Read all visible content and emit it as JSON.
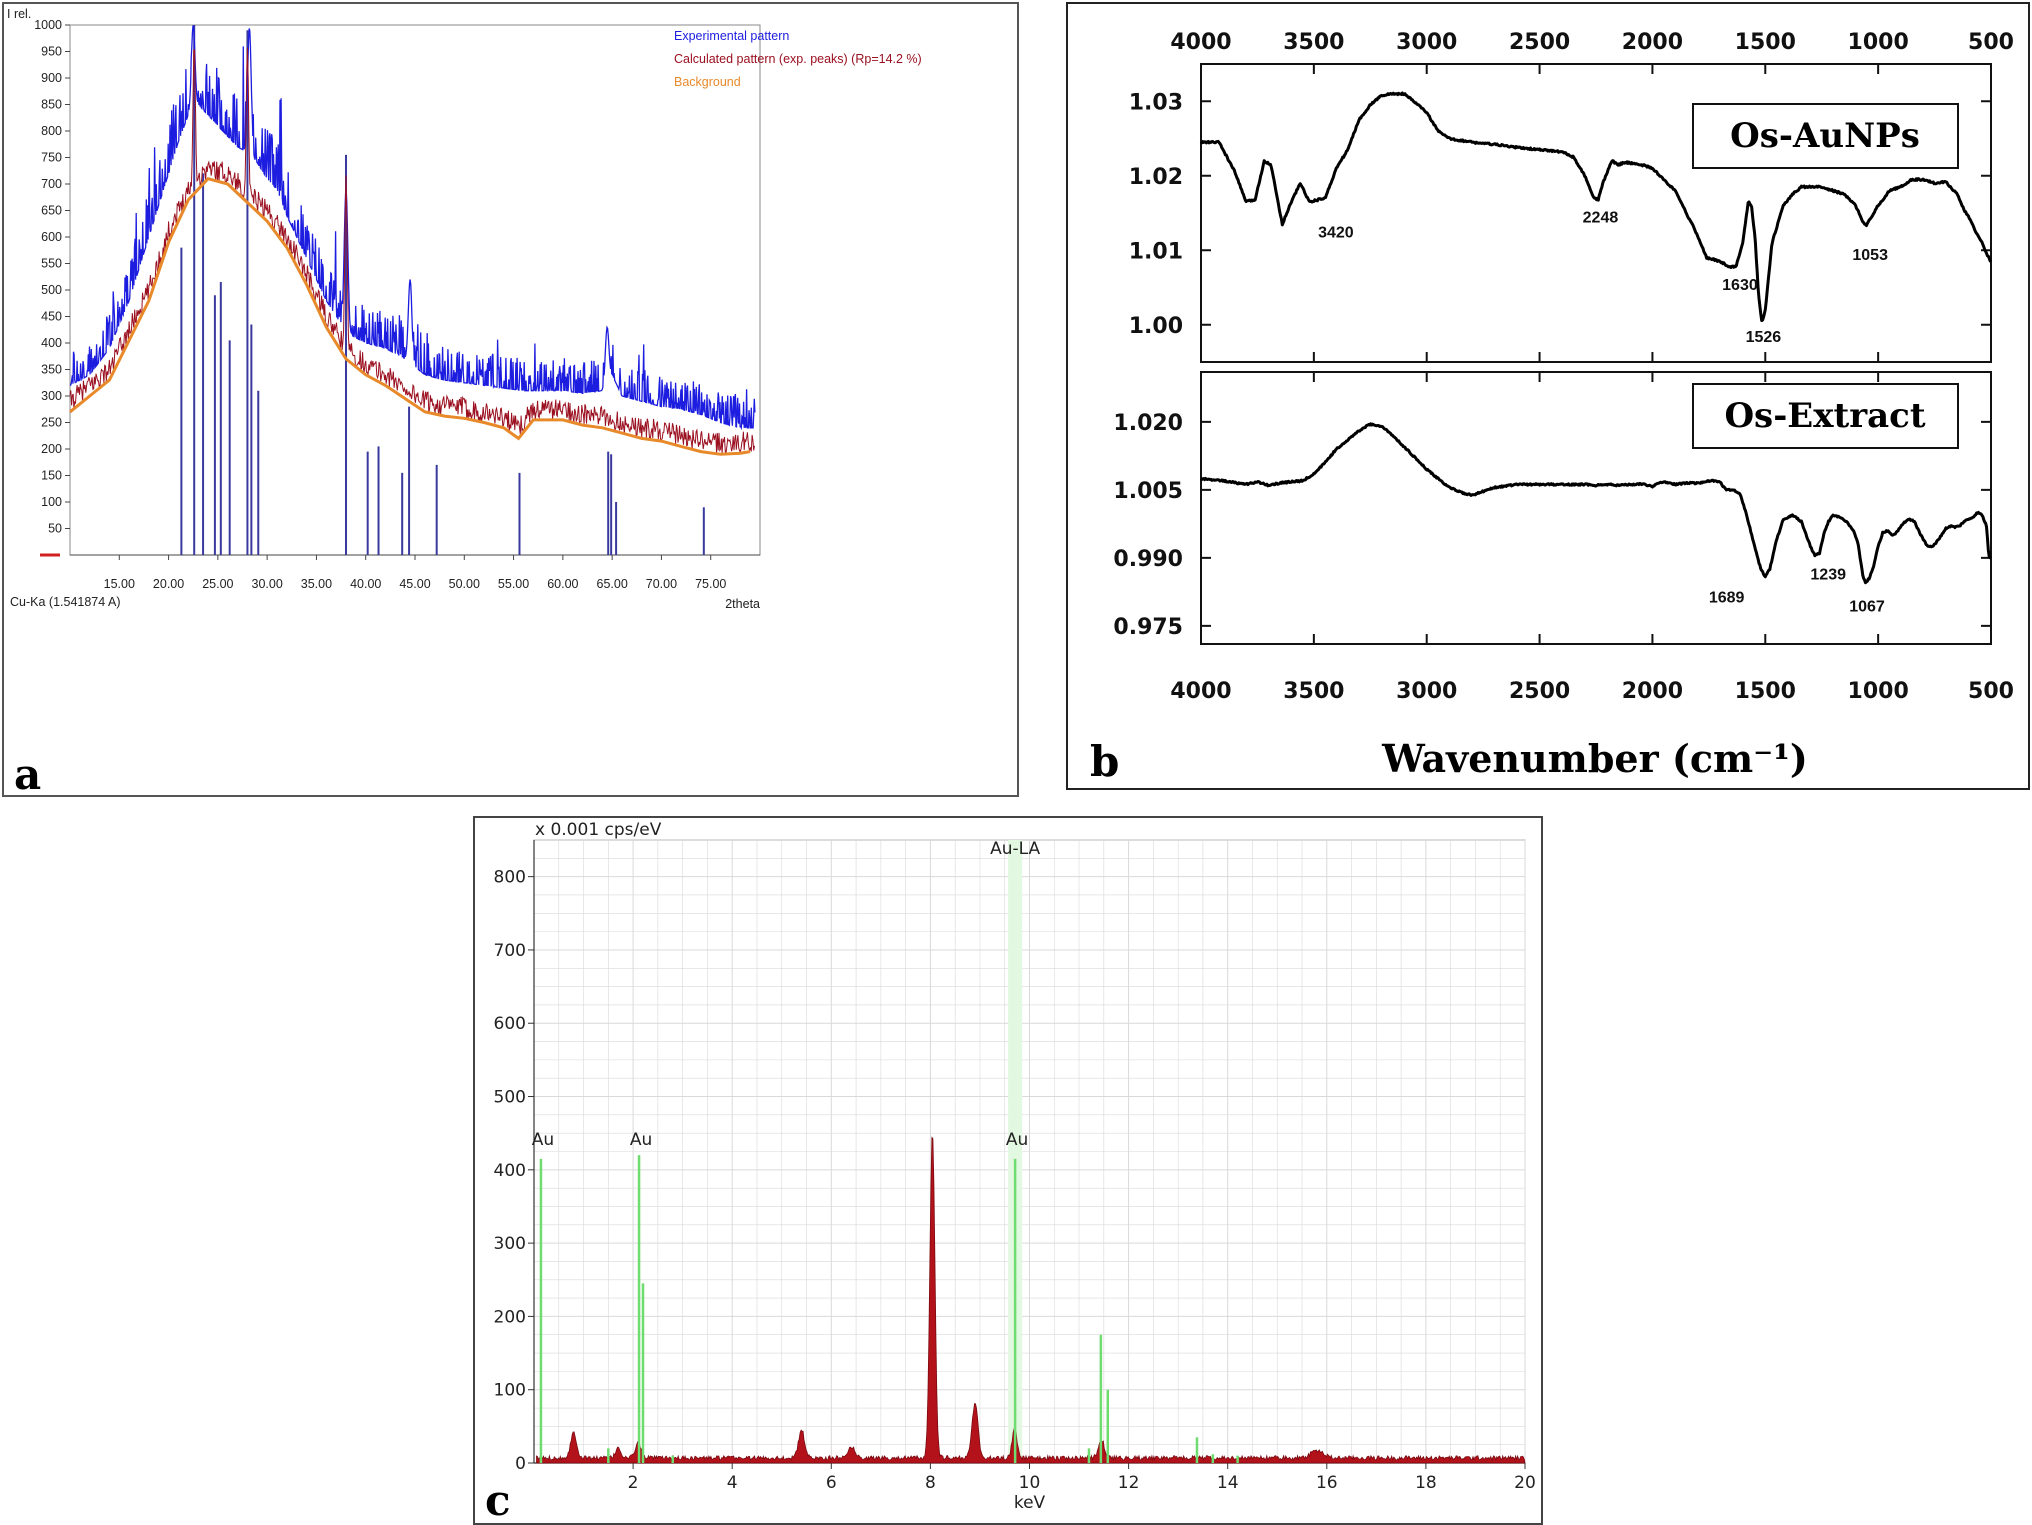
{
  "chart_data": [
    {
      "panel": "a",
      "type": "line",
      "ylabel": "I rel.",
      "xlabel": "2theta",
      "radiation": "Cu-Ka (1.541874 A)",
      "xlim": [
        10,
        80
      ],
      "ylim": [
        0,
        1000
      ],
      "x_ticks": [
        "15.00",
        "20.00",
        "25.00",
        "30.00",
        "35.00",
        "40.00",
        "45.00",
        "50.00",
        "55.00",
        "60.00",
        "65.00",
        "70.00",
        "75.00"
      ],
      "y_ticks": [
        "50",
        "100",
        "150",
        "200",
        "250",
        "300",
        "350",
        "400",
        "450",
        "500",
        "550",
        "600",
        "650",
        "700",
        "750",
        "800",
        "850",
        "900",
        "950",
        "1000"
      ],
      "legend": [
        "Experimental pattern",
        "Calculated pattern (exp. peaks) (Rp=14.2 %)",
        "Background"
      ],
      "colors": {
        "experimental": "#1d1de0",
        "calculated": "#9b1020",
        "background": "#e8892a",
        "sticks": "#3a3a9e"
      },
      "background_curve": {
        "x": [
          10,
          14,
          18,
          20,
          22,
          24,
          26,
          28,
          30,
          32,
          34,
          36,
          38,
          40,
          42,
          44,
          46,
          48,
          50,
          52,
          54,
          55.5,
          57,
          60,
          62,
          64,
          66,
          68,
          70,
          72,
          74,
          76,
          78,
          79
        ],
        "y": [
          270,
          330,
          480,
          590,
          670,
          710,
          700,
          665,
          630,
          580,
          510,
          430,
          370,
          340,
          320,
          295,
          270,
          262,
          258,
          250,
          240,
          220,
          255,
          255,
          245,
          240,
          230,
          220,
          215,
          205,
          195,
          190,
          192,
          195
        ]
      },
      "experimental_envelope": {
        "x": [
          10,
          12,
          14,
          16,
          18,
          20,
          21,
          22,
          23,
          24,
          25,
          26,
          27,
          28,
          29,
          30,
          31,
          32,
          34,
          36,
          38,
          40,
          42,
          44,
          46,
          48,
          50,
          52,
          54,
          56,
          58,
          60,
          62,
          64,
          65,
          66,
          68,
          70,
          72,
          74,
          76,
          78,
          79
        ],
        "y": [
          320,
          340,
          390,
          480,
          600,
          720,
          780,
          830,
          850,
          830,
          810,
          790,
          770,
          760,
          740,
          710,
          690,
          640,
          560,
          480,
          420,
          400,
          390,
          370,
          340,
          330,
          325,
          320,
          315,
          310,
          310,
          310,
          305,
          310,
          340,
          300,
          290,
          280,
          275,
          265,
          250,
          240,
          240
        ]
      },
      "sharp_peaks": {
        "x": [
          22.5,
          28.2,
          38.0,
          44.5,
          64.5
        ],
        "y": [
          1000,
          995,
          690,
          520,
          430
        ]
      },
      "reference_sticks": {
        "x": [
          21.3,
          22.6,
          23.5,
          24.7,
          25.3,
          26.2,
          28.0,
          28.4,
          29.1,
          38.0,
          40.2,
          41.3,
          43.7,
          44.4,
          47.2,
          55.6,
          64.6,
          64.9,
          65.4,
          74.3
        ],
        "y": [
          580,
          1000,
          720,
          490,
          515,
          405,
          990,
          435,
          310,
          755,
          195,
          205,
          155,
          280,
          170,
          155,
          195,
          190,
          100,
          90
        ]
      }
    },
    {
      "panel": "b",
      "type": "line",
      "xlabel": "Wavenumber (cm⁻¹)",
      "x_ticks": [
        "4000",
        "3500",
        "3000",
        "2500",
        "2000",
        "1500",
        "1000",
        "500"
      ],
      "xlim": [
        4000,
        500
      ],
      "subplots": [
        {
          "name": "Os-AuNPs",
          "ylim": [
            0.995,
            1.035
          ],
          "y_ticks": [
            "1.00",
            "1.01",
            "1.02",
            "1.03"
          ],
          "x": [
            4000,
            3920,
            3850,
            3800,
            3760,
            3720,
            3690,
            3640,
            3600,
            3560,
            3520,
            3450,
            3400,
            3350,
            3300,
            3250,
            3200,
            3150,
            3100,
            3050,
            3000,
            2950,
            2900,
            2800,
            2700,
            2600,
            2500,
            2400,
            2350,
            2300,
            2260,
            2240,
            2220,
            2180,
            2150,
            2120,
            2050,
            2000,
            1950,
            1900,
            1850,
            1800,
            1760,
            1700,
            1660,
            1630,
            1600,
            1575,
            1560,
            1545,
            1530,
            1515,
            1500,
            1470,
            1420,
            1380,
            1340,
            1300,
            1250,
            1200,
            1150,
            1100,
            1070,
            1053,
            1030,
            1000,
            950,
            900,
            850,
            800,
            750,
            700,
            650,
            620,
            590,
            560,
            540,
            520,
            500
          ],
          "y": [
            1.0245,
            1.0245,
            1.0205,
            1.0165,
            1.0168,
            1.022,
            1.0215,
            1.0135,
            1.0165,
            1.019,
            1.0165,
            1.017,
            1.021,
            1.0235,
            1.0275,
            1.0295,
            1.0308,
            1.031,
            1.031,
            1.0298,
            1.0285,
            1.026,
            1.025,
            1.0245,
            1.0242,
            1.0238,
            1.0235,
            1.0232,
            1.0225,
            1.02,
            1.017,
            1.0168,
            1.019,
            1.022,
            1.0215,
            1.0218,
            1.0215,
            1.021,
            1.0195,
            1.018,
            1.015,
            1.012,
            1.009,
            1.0085,
            1.0078,
            1.0078,
            1.011,
            1.0165,
            1.0158,
            1.0115,
            1.004,
            1.0002,
            1.002,
            1.011,
            1.016,
            1.0175,
            1.0185,
            1.0185,
            1.0185,
            1.018,
            1.0175,
            1.016,
            1.014,
            1.0132,
            1.0145,
            1.016,
            1.018,
            1.0185,
            1.0195,
            1.0195,
            1.019,
            1.0192,
            1.0175,
            1.0155,
            1.014,
            1.012,
            1.011,
            1.0095,
            1.0085
          ],
          "annotations": [
            {
              "text": "3420",
              "x": 3420,
              "y": 1.0125
            },
            {
              "text": "2248",
              "x": 2248,
              "y": 1.0145
            },
            {
              "text": "1630",
              "x": 1630,
              "y": 1.0055
            },
            {
              "text": "1526",
              "x": 1526,
              "y": 0.9985
            },
            {
              "text": "1053",
              "x": 1053,
              "y": 1.0095
            }
          ]
        },
        {
          "name": "Os-Extract",
          "ylim": [
            0.971,
            1.031
          ],
          "y_ticks": [
            "0.975",
            "0.990",
            "1.005",
            "1.020"
          ],
          "x": [
            4000,
            3900,
            3800,
            3750,
            3700,
            3650,
            3600,
            3550,
            3500,
            3450,
            3400,
            3350,
            3300,
            3250,
            3200,
            3150,
            3100,
            3050,
            3000,
            2950,
            2900,
            2850,
            2800,
            2700,
            2600,
            2500,
            2400,
            2300,
            2250,
            2200,
            2150,
            2100,
            2050,
            2000,
            1950,
            1900,
            1850,
            1800,
            1750,
            1720,
            1700,
            1689,
            1670,
            1640,
            1610,
            1580,
            1550,
            1520,
            1500,
            1480,
            1450,
            1420,
            1380,
            1340,
            1300,
            1280,
            1260,
            1239,
            1220,
            1200,
            1170,
            1140,
            1110,
            1090,
            1080,
            1067,
            1055,
            1040,
            1020,
            1000,
            980,
            960,
            940,
            920,
            900,
            880,
            860,
            840,
            820,
            800,
            780,
            760,
            740,
            720,
            700,
            680,
            660,
            640,
            620,
            600,
            580,
            560,
            540,
            520,
            510,
            500
          ],
          "y": [
            1.0075,
            1.007,
            1.0062,
            1.0068,
            1.006,
            1.0065,
            1.0068,
            1.007,
            1.0085,
            1.011,
            1.014,
            1.016,
            1.018,
            1.0195,
            1.019,
            1.017,
            1.0145,
            1.012,
            1.0095,
            1.0075,
            1.0055,
            1.0045,
            1.0038,
            1.0055,
            1.0062,
            1.0062,
            1.0062,
            1.0062,
            1.006,
            1.0062,
            1.006,
            1.0062,
            1.0063,
            1.0058,
            1.0068,
            1.0062,
            1.0065,
            1.0065,
            1.007,
            1.007,
            1.0068,
            1.0058,
            1.005,
            1.005,
            1.004,
            0.999,
            0.993,
            0.9875,
            0.9858,
            0.9875,
            0.994,
            0.9985,
            0.9995,
            0.998,
            0.9925,
            0.9905,
            0.991,
            0.9955,
            0.998,
            0.9995,
            0.999,
            0.998,
            0.996,
            0.9935,
            0.99,
            0.986,
            0.9845,
            0.9855,
            0.988,
            0.9925,
            0.9955,
            0.996,
            0.995,
            0.9955,
            0.997,
            0.998,
            0.9985,
            0.998,
            0.996,
            0.994,
            0.9925,
            0.9925,
            0.9935,
            0.995,
            0.9965,
            0.997,
            0.9968,
            0.997,
            0.998,
            0.9985,
            0.999,
            1.0,
            0.9995,
            0.997,
            0.9905,
            0.99
          ],
          "annotations": [
            {
              "text": "1689",
              "x": 1689,
              "y": 0.9815
            },
            {
              "text": "1239",
              "x": 1239,
              "y": 0.9865
            },
            {
              "text": "1067",
              "x": 1067,
              "y": 0.9795
            }
          ]
        }
      ]
    },
    {
      "panel": "c",
      "type": "bar",
      "ylabel": "x 0.001 cps/eV",
      "xlabel": "keV",
      "xlim": [
        0,
        20
      ],
      "ylim": [
        0,
        850
      ],
      "x_ticks": [
        "2",
        "4",
        "6",
        "8",
        "10",
        "12",
        "14",
        "16",
        "18",
        "20"
      ],
      "y_ticks": [
        "0",
        "100",
        "200",
        "300",
        "400",
        "500",
        "600",
        "700",
        "800"
      ],
      "element_lines": [
        {
          "label": "Au",
          "x": 0.14,
          "height": 420
        },
        {
          "label": "Au",
          "x": 2.12,
          "height": 420
        },
        {
          "label": "Au",
          "x": 9.71,
          "height": 420
        }
      ],
      "element_highlight": {
        "label": "Au-LA",
        "x": 9.71
      },
      "green_markers": {
        "x": [
          0.14,
          2.12,
          2.2,
          9.71,
          11.44,
          11.58,
          13.38,
          1.5,
          2.8,
          11.2,
          13.7,
          14.2
        ],
        "y": [
          415,
          420,
          245,
          415,
          175,
          100,
          35,
          20,
          10,
          20,
          12,
          10
        ]
      },
      "spectrum_peaks": {
        "x": [
          0.8,
          1.7,
          2.1,
          5.4,
          6.4,
          8.04,
          8.9,
          9.7,
          11.45,
          15.8
        ],
        "y": [
          35,
          15,
          20,
          38,
          15,
          445,
          75,
          40,
          25,
          10
        ],
        "widths": [
          0.12,
          0.1,
          0.12,
          0.12,
          0.15,
          0.1,
          0.12,
          0.1,
          0.12,
          0.25
        ]
      },
      "colors": {
        "spectrum": "#b3121a",
        "markers": "#6fdc6f",
        "highlight": "#e3f8e0",
        "grid": "#d9d9d9"
      }
    }
  ],
  "panel_labels": {
    "a": "a",
    "b": "b",
    "c": "c"
  }
}
